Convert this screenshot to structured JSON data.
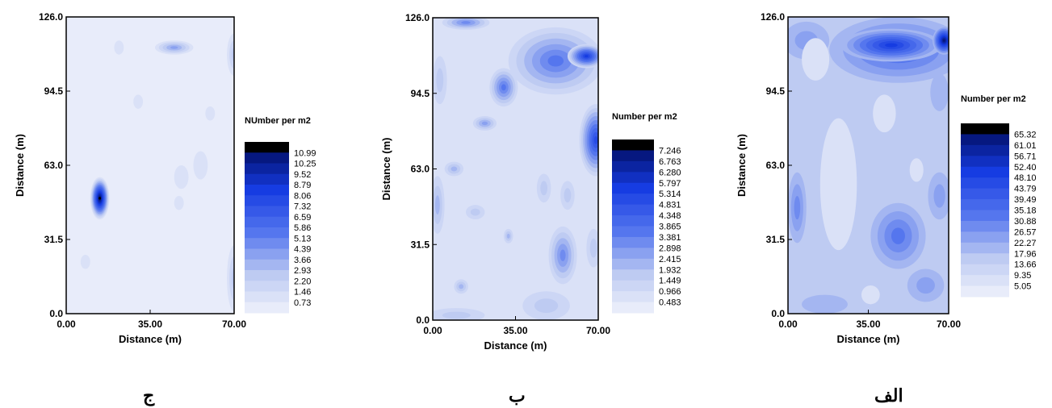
{
  "chart_data": [
    {
      "type": "heatmap",
      "caption": "ج",
      "xlabel": "Distance (m)",
      "ylabel": "Distance (m)",
      "xlim": [
        0,
        70
      ],
      "ylim": [
        0,
        126
      ],
      "x_ticks": [
        "0.00",
        "35.00",
        "70.00"
      ],
      "y_ticks": [
        "0.0",
        "31.5",
        "63.0",
        "94.5",
        "126.0"
      ],
      "legend_title": "NUmber per m2",
      "legend_values": [
        "10.99",
        "10.25",
        "9.52",
        "8.79",
        "8.06",
        "7.32",
        "6.59",
        "5.86",
        "5.13",
        "4.39",
        "3.66",
        "2.93",
        "2.20",
        "1.46",
        "0.73"
      ],
      "base_level": 0,
      "hotspots": [
        {
          "x": 14,
          "y": 49,
          "rx": 4,
          "ry": 9,
          "level": 15
        },
        {
          "x": 45,
          "y": 113,
          "rx": 8,
          "ry": 3,
          "level": 5
        },
        {
          "x": 70,
          "y": 110,
          "rx": 3,
          "ry": 9,
          "level": 3
        },
        {
          "x": 70,
          "y": 15,
          "rx": 3,
          "ry": 14,
          "level": 3
        },
        {
          "x": 22,
          "y": 113,
          "rx": 2,
          "ry": 3,
          "level": 1
        },
        {
          "x": 48,
          "y": 58,
          "rx": 3,
          "ry": 5,
          "level": 1
        },
        {
          "x": 56,
          "y": 63,
          "rx": 3,
          "ry": 6,
          "level": 1
        },
        {
          "x": 30,
          "y": 90,
          "rx": 2,
          "ry": 3,
          "level": 1
        },
        {
          "x": 8,
          "y": 22,
          "rx": 2,
          "ry": 3,
          "level": 1
        },
        {
          "x": 47,
          "y": 47,
          "rx": 2,
          "ry": 3,
          "level": 1
        },
        {
          "x": 60,
          "y": 85,
          "rx": 2,
          "ry": 3,
          "level": 1
        }
      ]
    },
    {
      "type": "heatmap",
      "caption": "ب",
      "xlabel": "Distance (m)",
      "ylabel": "Distance (m)",
      "xlim": [
        0,
        70
      ],
      "ylim": [
        0,
        126
      ],
      "x_ticks": [
        "0.00",
        "35.00",
        "70.00"
      ],
      "y_ticks": [
        "0.0",
        "31.5",
        "63.0",
        "94.5",
        "126.0"
      ],
      "legend_title": "Number per m2",
      "legend_values": [
        "7.246",
        "6.763",
        "6.280",
        "5.797",
        "5.314",
        "4.831",
        "4.348",
        "3.865",
        "3.381",
        "2.898",
        "2.415",
        "1.932",
        "1.449",
        "0.966",
        "0.483"
      ],
      "base_level": 1,
      "hotspots": [
        {
          "x": 52,
          "y": 108,
          "rx": 20,
          "ry": 14,
          "level": 7
        },
        {
          "x": 65,
          "y": 110,
          "rx": 8,
          "ry": 5,
          "level": 11
        },
        {
          "x": 69,
          "y": 75,
          "rx": 7,
          "ry": 15,
          "level": 10
        },
        {
          "x": 30,
          "y": 97,
          "rx": 6,
          "ry": 8,
          "level": 7
        },
        {
          "x": 14,
          "y": 124,
          "rx": 10,
          "ry": 3,
          "level": 6
        },
        {
          "x": 55,
          "y": 27,
          "rx": 6,
          "ry": 12,
          "level": 6
        },
        {
          "x": 22,
          "y": 82,
          "rx": 5,
          "ry": 3,
          "level": 5
        },
        {
          "x": 2,
          "y": 48,
          "rx": 3,
          "ry": 12,
          "level": 4
        },
        {
          "x": 3,
          "y": 100,
          "rx": 3,
          "ry": 10,
          "level": 3
        },
        {
          "x": 9,
          "y": 63,
          "rx": 4,
          "ry": 3,
          "level": 4
        },
        {
          "x": 32,
          "y": 35,
          "rx": 2,
          "ry": 3,
          "level": 4
        },
        {
          "x": 12,
          "y": 14,
          "rx": 3,
          "ry": 3,
          "level": 4
        },
        {
          "x": 48,
          "y": 6,
          "rx": 10,
          "ry": 6,
          "level": 3
        },
        {
          "x": 57,
          "y": 52,
          "rx": 3,
          "ry": 6,
          "level": 3
        },
        {
          "x": 47,
          "y": 55,
          "rx": 3,
          "ry": 6,
          "level": 3
        },
        {
          "x": 10,
          "y": 2,
          "rx": 12,
          "ry": 3,
          "level": 3
        },
        {
          "x": 68,
          "y": 30,
          "rx": 3,
          "ry": 8,
          "level": 3
        },
        {
          "x": 18,
          "y": 45,
          "rx": 4,
          "ry": 3,
          "level": 3
        }
      ]
    },
    {
      "type": "heatmap",
      "caption": "الف",
      "xlabel": "Distance (m)",
      "ylabel": "Distance (m)",
      "xlim": [
        0,
        70
      ],
      "ylim": [
        0,
        126
      ],
      "x_ticks": [
        "0.00",
        "35.00",
        "70.00"
      ],
      "y_ticks": [
        "0.0",
        "31.5",
        "63.0",
        "94.5",
        "126.0"
      ],
      "legend_title": "Number per m2",
      "legend_values": [
        "65.32",
        "61.01",
        "56.71",
        "52.40",
        "48.10",
        "43.79",
        "39.49",
        "35.18",
        "30.88",
        "26.57",
        "22.27",
        "17.96",
        "13.66",
        "9.35",
        "5.05"
      ],
      "base_level": 3,
      "hotspots": [
        {
          "x": 48,
          "y": 112,
          "rx": 30,
          "ry": 14,
          "level": 8
        },
        {
          "x": 45,
          "y": 114,
          "rx": 22,
          "ry": 7,
          "level": 11
        },
        {
          "x": 68,
          "y": 116,
          "rx": 5,
          "ry": 6,
          "level": 14
        },
        {
          "x": 8,
          "y": 116,
          "rx": 10,
          "ry": 8,
          "level": 5
        },
        {
          "x": 48,
          "y": 33,
          "rx": 12,
          "ry": 14,
          "level": 7
        },
        {
          "x": 4,
          "y": 45,
          "rx": 4,
          "ry": 15,
          "level": 6
        },
        {
          "x": 66,
          "y": 50,
          "rx": 5,
          "ry": 10,
          "level": 5
        },
        {
          "x": 60,
          "y": 12,
          "rx": 8,
          "ry": 7,
          "level": 5
        },
        {
          "x": 12,
          "y": 108,
          "rx": 6,
          "ry": 9,
          "level": 1
        },
        {
          "x": 22,
          "y": 55,
          "rx": 8,
          "ry": 28,
          "level": 1
        },
        {
          "x": 42,
          "y": 85,
          "rx": 5,
          "ry": 8,
          "level": 1
        },
        {
          "x": 36,
          "y": 8,
          "rx": 4,
          "ry": 4,
          "level": 1
        },
        {
          "x": 56,
          "y": 61,
          "rx": 3,
          "ry": 5,
          "level": 1
        },
        {
          "x": 66,
          "y": 94,
          "rx": 4,
          "ry": 8,
          "level": 4
        },
        {
          "x": 16,
          "y": 4,
          "rx": 10,
          "ry": 4,
          "level": 4
        }
      ]
    }
  ]
}
